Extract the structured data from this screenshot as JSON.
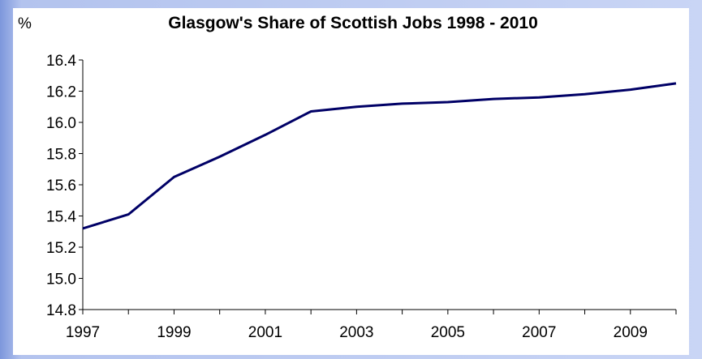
{
  "chart_data": {
    "type": "line",
    "title": "Glasgow's Share of Scottish Jobs 1998 - 2010",
    "unit_label": "%",
    "xlabel": "",
    "ylabel": "",
    "xlim": [
      1997,
      2010
    ],
    "ylim": [
      14.8,
      16.4
    ],
    "x_ticks": [
      "1997",
      "1999",
      "2001",
      "2003",
      "2005",
      "2007",
      "2009"
    ],
    "y_ticks": [
      "16.4",
      "16.2",
      "16.0",
      "15.8",
      "15.6",
      "15.4",
      "15.2",
      "15.0",
      "14.8"
    ],
    "grid": false,
    "legend": false,
    "series": [
      {
        "color": "#000066",
        "x": [
          1997,
          1998,
          1999,
          2000,
          2001,
          2002,
          2003,
          2004,
          2005,
          2006,
          2007,
          2008,
          2009,
          2010
        ],
        "values": [
          15.32,
          15.41,
          15.65,
          15.78,
          15.92,
          16.07,
          16.1,
          16.12,
          16.13,
          16.15,
          16.16,
          16.18,
          16.21,
          16.25
        ]
      }
    ]
  }
}
